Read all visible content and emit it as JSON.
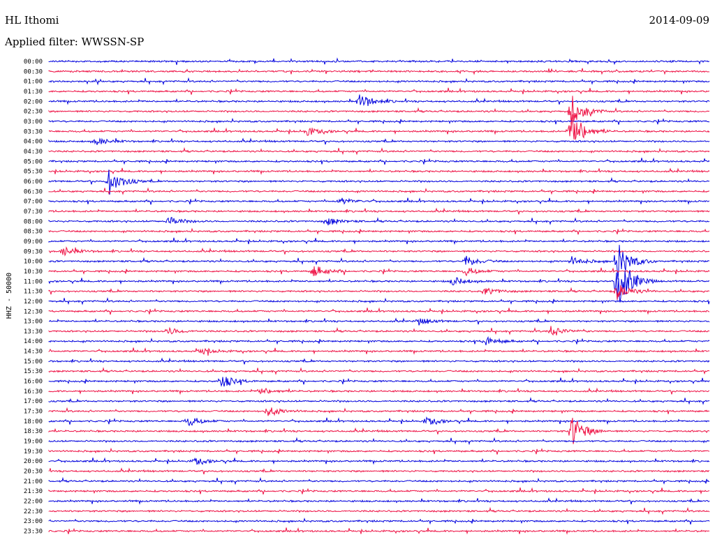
{
  "header": {
    "station": "HL Ithomi",
    "date": "2014-09-09",
    "filter": "Applied filter: WWSSN-SP"
  },
  "chart_data": {
    "type": "seismogram",
    "title": "HL Ithomi",
    "date": "2014-09-09",
    "ylabel": "HHZ - 50000",
    "colors": {
      "even": "#0000dd",
      "odd": "#ee1144"
    },
    "tick_labels": [
      "00:00",
      "00:30",
      "01:00",
      "01:30",
      "02:00",
      "02:30",
      "03:00",
      "03:30",
      "04:00",
      "04:30",
      "05:00",
      "05:30",
      "06:00",
      "06:30",
      "07:00",
      "07:30",
      "08:00",
      "08:30",
      "09:00",
      "09:30",
      "10:00",
      "10:30",
      "11:00",
      "11:30",
      "12:00",
      "12:30",
      "13:00",
      "13:30",
      "14:00",
      "14:30",
      "15:00",
      "15:30",
      "16:00",
      "16:30",
      "17:00",
      "17:30",
      "18:00",
      "18:30",
      "19:00",
      "19:30",
      "20:00",
      "20:30",
      "21:00",
      "21:30",
      "22:00",
      "22:30",
      "23:00",
      "23:30"
    ],
    "events": [
      {
        "trace": 4,
        "t": 0.47,
        "amp": 12
      },
      {
        "trace": 5,
        "t": 0.79,
        "amp": 22
      },
      {
        "trace": 7,
        "t": 0.79,
        "amp": 30
      },
      {
        "trace": 7,
        "t": 0.39,
        "amp": 6
      },
      {
        "trace": 8,
        "t": 0.07,
        "amp": 6
      },
      {
        "trace": 12,
        "t": 0.09,
        "amp": 20
      },
      {
        "trace": 14,
        "t": 0.44,
        "amp": 5
      },
      {
        "trace": 16,
        "t": 0.18,
        "amp": 7
      },
      {
        "trace": 16,
        "t": 0.42,
        "amp": 6
      },
      {
        "trace": 19,
        "t": 0.02,
        "amp": 7
      },
      {
        "trace": 20,
        "t": 0.63,
        "amp": 8
      },
      {
        "trace": 20,
        "t": 0.79,
        "amp": 7
      },
      {
        "trace": 20,
        "t": 0.86,
        "amp": 28
      },
      {
        "trace": 21,
        "t": 0.4,
        "amp": 9
      },
      {
        "trace": 21,
        "t": 0.63,
        "amp": 6
      },
      {
        "trace": 22,
        "t": 0.61,
        "amp": 7
      },
      {
        "trace": 22,
        "t": 0.86,
        "amp": 42
      },
      {
        "trace": 23,
        "t": 0.66,
        "amp": 6
      },
      {
        "trace": 23,
        "t": 0.86,
        "amp": 12
      },
      {
        "trace": 26,
        "t": 0.56,
        "amp": 5
      },
      {
        "trace": 27,
        "t": 0.18,
        "amp": 5
      },
      {
        "trace": 27,
        "t": 0.76,
        "amp": 8
      },
      {
        "trace": 28,
        "t": 0.66,
        "amp": 7
      },
      {
        "trace": 29,
        "t": 0.23,
        "amp": 5
      },
      {
        "trace": 32,
        "t": 0.26,
        "amp": 10
      },
      {
        "trace": 33,
        "t": 0.32,
        "amp": 5
      },
      {
        "trace": 35,
        "t": 0.33,
        "amp": 8
      },
      {
        "trace": 36,
        "t": 0.21,
        "amp": 7
      },
      {
        "trace": 36,
        "t": 0.57,
        "amp": 6
      },
      {
        "trace": 37,
        "t": 0.79,
        "amp": 24
      },
      {
        "trace": 40,
        "t": 0.22,
        "amp": 5
      }
    ]
  }
}
